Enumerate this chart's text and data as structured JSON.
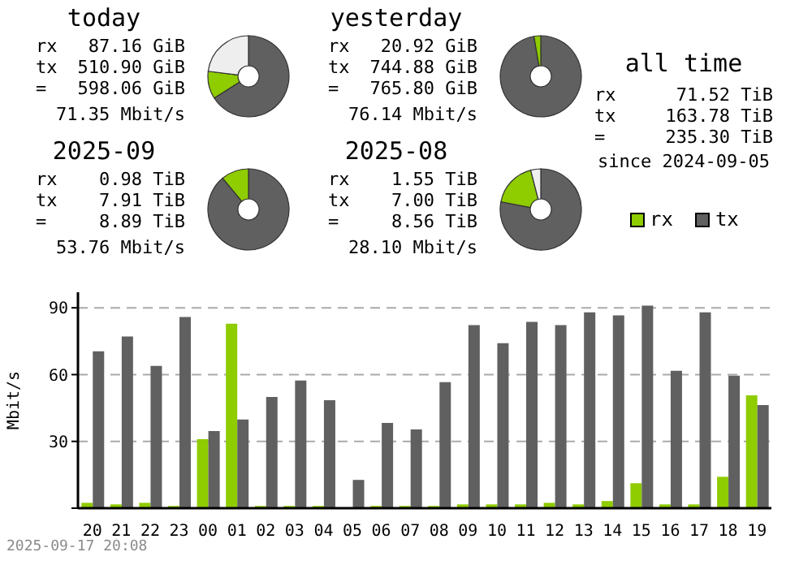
{
  "chart_data": [
    {
      "type": "donut",
      "title": "today",
      "categories": [
        null,
        null,
        null
      ],
      "values": [
        66,
        11,
        23
      ],
      "colors": [
        "#606060",
        "#8fcc00",
        "#eeeeee"
      ],
      "annotations": [
        "rx 87.16 GiB",
        "tx 510.90 GiB",
        "= 598.06 GiB",
        "71.35 Mbit/s"
      ]
    },
    {
      "type": "donut",
      "title": "yesterday",
      "categories": [
        null,
        null
      ],
      "values": [
        97.3,
        2.7
      ],
      "colors": [
        "#606060",
        "#8fcc00"
      ],
      "annotations": [
        "rx 20.92 GiB",
        "tx 744.88 GiB",
        "= 765.80 GiB",
        "76.14 Mbit/s"
      ]
    },
    {
      "type": "other",
      "title": "all time",
      "annotations": [
        "rx 71.52 TiB",
        "tx 163.78 TiB",
        "= 235.30 TiB",
        "since 2024-09-05"
      ]
    },
    {
      "type": "donut",
      "title": "2025-09",
      "categories": [
        null,
        null
      ],
      "values": [
        89,
        11
      ],
      "colors": [
        "#606060",
        "#8fcc00"
      ],
      "annotations": [
        "rx 0.98 TiB",
        "tx 7.91 TiB",
        "= 8.89 TiB",
        "53.76 Mbit/s"
      ]
    },
    {
      "type": "donut",
      "title": "2025-08",
      "categories": [
        null,
        null,
        null
      ],
      "values": [
        78,
        18,
        4
      ],
      "colors": [
        "#606060",
        "#8fcc00",
        "#eeeeee"
      ],
      "annotations": [
        "rx 1.55 TiB",
        "tx 7.00 TiB",
        "= 8.56 TiB",
        "28.10 Mbit/s"
      ]
    },
    {
      "type": "bar",
      "ylabel": "Mbit/s",
      "categories": [
        "20",
        "21",
        "22",
        "23",
        "00",
        "01",
        "02",
        "03",
        "04",
        "05",
        "06",
        "07",
        "08",
        "09",
        "10",
        "11",
        "12",
        "13",
        "14",
        "15",
        "16",
        "17",
        "18",
        "19"
      ],
      "series": [
        {
          "name": "rx",
          "color": "#8fcc00",
          "values": [
            2.4,
            1.7,
            2.4,
            1.0,
            31.0,
            82.9,
            1.0,
            1.0,
            1.0,
            0,
            1.0,
            1.0,
            1.0,
            1.7,
            1.7,
            1.7,
            2.4,
            1.7,
            3.2,
            11.2,
            1.7,
            1.7,
            14.1,
            50.7
          ]
        },
        {
          "name": "tx",
          "color": "#606060",
          "values": [
            70.5,
            77.1,
            63.9,
            85.9,
            34.6,
            39.8,
            50.0,
            57.3,
            48.5,
            12.7,
            38.3,
            35.4,
            56.6,
            82.2,
            74.1,
            83.7,
            82.2,
            88.0,
            86.6,
            91.0,
            61.7,
            88.0,
            59.5,
            46.3
          ]
        }
      ],
      "ylim": [
        0,
        97
      ],
      "yticks": [
        {
          "value": 0,
          "label": null
        },
        30,
        60,
        90
      ],
      "grid": "y",
      "legend": "top right",
      "annotations": [
        "2025-09-17 20:08"
      ]
    }
  ]
}
